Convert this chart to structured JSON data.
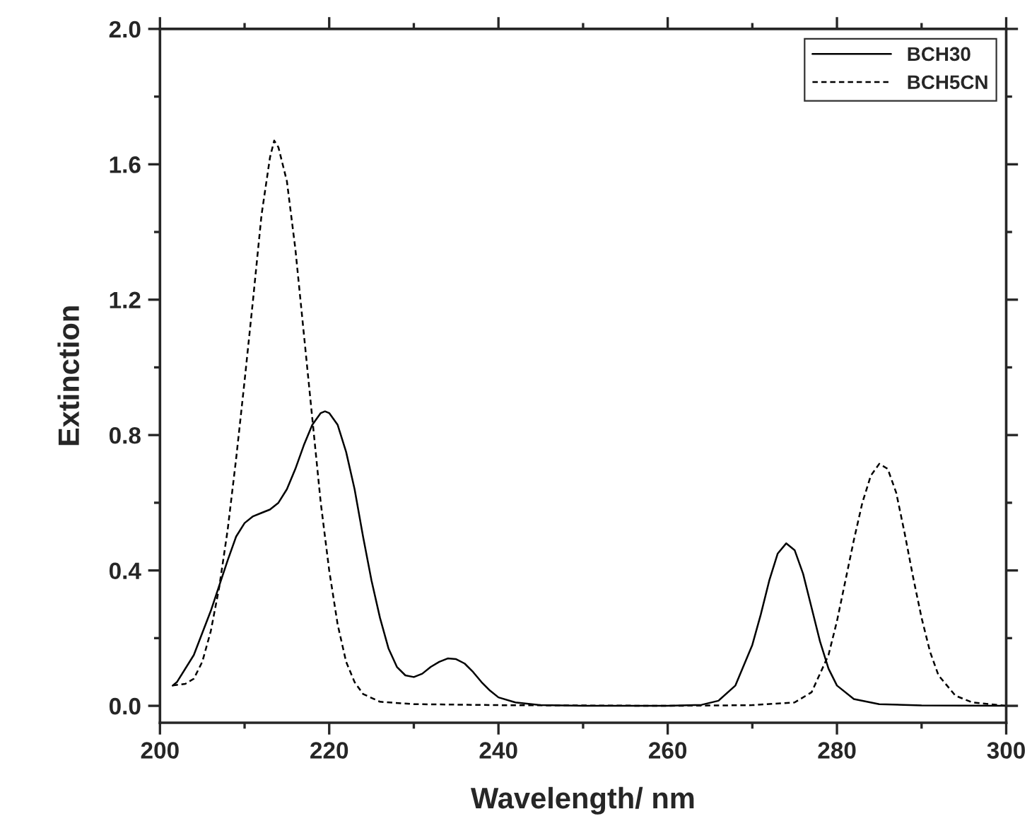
{
  "chart_data": {
    "type": "line",
    "xlabel": "Wavelength/ nm",
    "ylabel": "Extinction",
    "xlim": [
      200,
      300
    ],
    "ylim": [
      -0.05,
      2.0
    ],
    "xticks": [
      200,
      220,
      240,
      260,
      280,
      300
    ],
    "yticks": [
      {
        "value": 0,
        "label": "0.0"
      },
      0.4,
      0.8,
      1.2,
      1.6,
      {
        "value": 2,
        "label": "2.0"
      }
    ],
    "legend": "top right",
    "grid": false,
    "marker": "none",
    "series": [
      {
        "name": "BCH30",
        "color": "#000000",
        "line_style": "solid",
        "x": [
          201.5,
          202,
          204,
          206,
          208,
          209,
          210,
          211,
          212,
          213,
          214,
          215,
          216,
          217,
          218,
          219,
          219.5,
          220,
          221,
          222,
          223,
          224,
          225,
          226,
          227,
          228,
          229,
          230,
          231,
          232,
          233,
          234,
          235,
          236,
          237,
          238,
          239,
          240,
          242,
          245,
          250,
          260,
          264,
          266,
          268,
          270,
          271,
          272,
          273,
          274,
          275,
          276,
          277,
          278,
          279,
          280,
          282,
          285,
          290,
          300
        ],
        "values": [
          0.06,
          0.07,
          0.15,
          0.28,
          0.43,
          0.5,
          0.54,
          0.56,
          0.57,
          0.58,
          0.6,
          0.64,
          0.7,
          0.77,
          0.83,
          0.865,
          0.87,
          0.865,
          0.83,
          0.75,
          0.64,
          0.5,
          0.37,
          0.26,
          0.17,
          0.115,
          0.09,
          0.085,
          0.095,
          0.115,
          0.13,
          0.14,
          0.138,
          0.125,
          0.1,
          0.07,
          0.045,
          0.025,
          0.01,
          0.002,
          0,
          0,
          0.003,
          0.015,
          0.06,
          0.18,
          0.27,
          0.37,
          0.45,
          0.48,
          0.46,
          0.39,
          0.29,
          0.19,
          0.11,
          0.06,
          0.02,
          0.005,
          0.001,
          0
        ]
      },
      {
        "name": "BCH5CN",
        "color": "#000000",
        "line_style": "dashed",
        "x": [
          201.5,
          203,
          204,
          205,
          206,
          207,
          208,
          209,
          210,
          211,
          212,
          213,
          213.5,
          214,
          215,
          216,
          217,
          218,
          219,
          220,
          221,
          222,
          223,
          224,
          226,
          230,
          240,
          260,
          270,
          275,
          277,
          279,
          280,
          281,
          282,
          283,
          284,
          285,
          286,
          287,
          288,
          289,
          290,
          291,
          292,
          294,
          296,
          300
        ],
        "values": [
          0.06,
          0.065,
          0.08,
          0.13,
          0.22,
          0.35,
          0.52,
          0.73,
          0.96,
          1.2,
          1.45,
          1.62,
          1.67,
          1.65,
          1.55,
          1.35,
          1.1,
          0.85,
          0.6,
          0.4,
          0.24,
          0.13,
          0.07,
          0.035,
          0.012,
          0.005,
          0.002,
          0,
          0.002,
          0.01,
          0.04,
          0.15,
          0.25,
          0.37,
          0.49,
          0.6,
          0.68,
          0.715,
          0.7,
          0.63,
          0.51,
          0.38,
          0.26,
          0.16,
          0.09,
          0.03,
          0.01,
          0
        ]
      }
    ]
  }
}
